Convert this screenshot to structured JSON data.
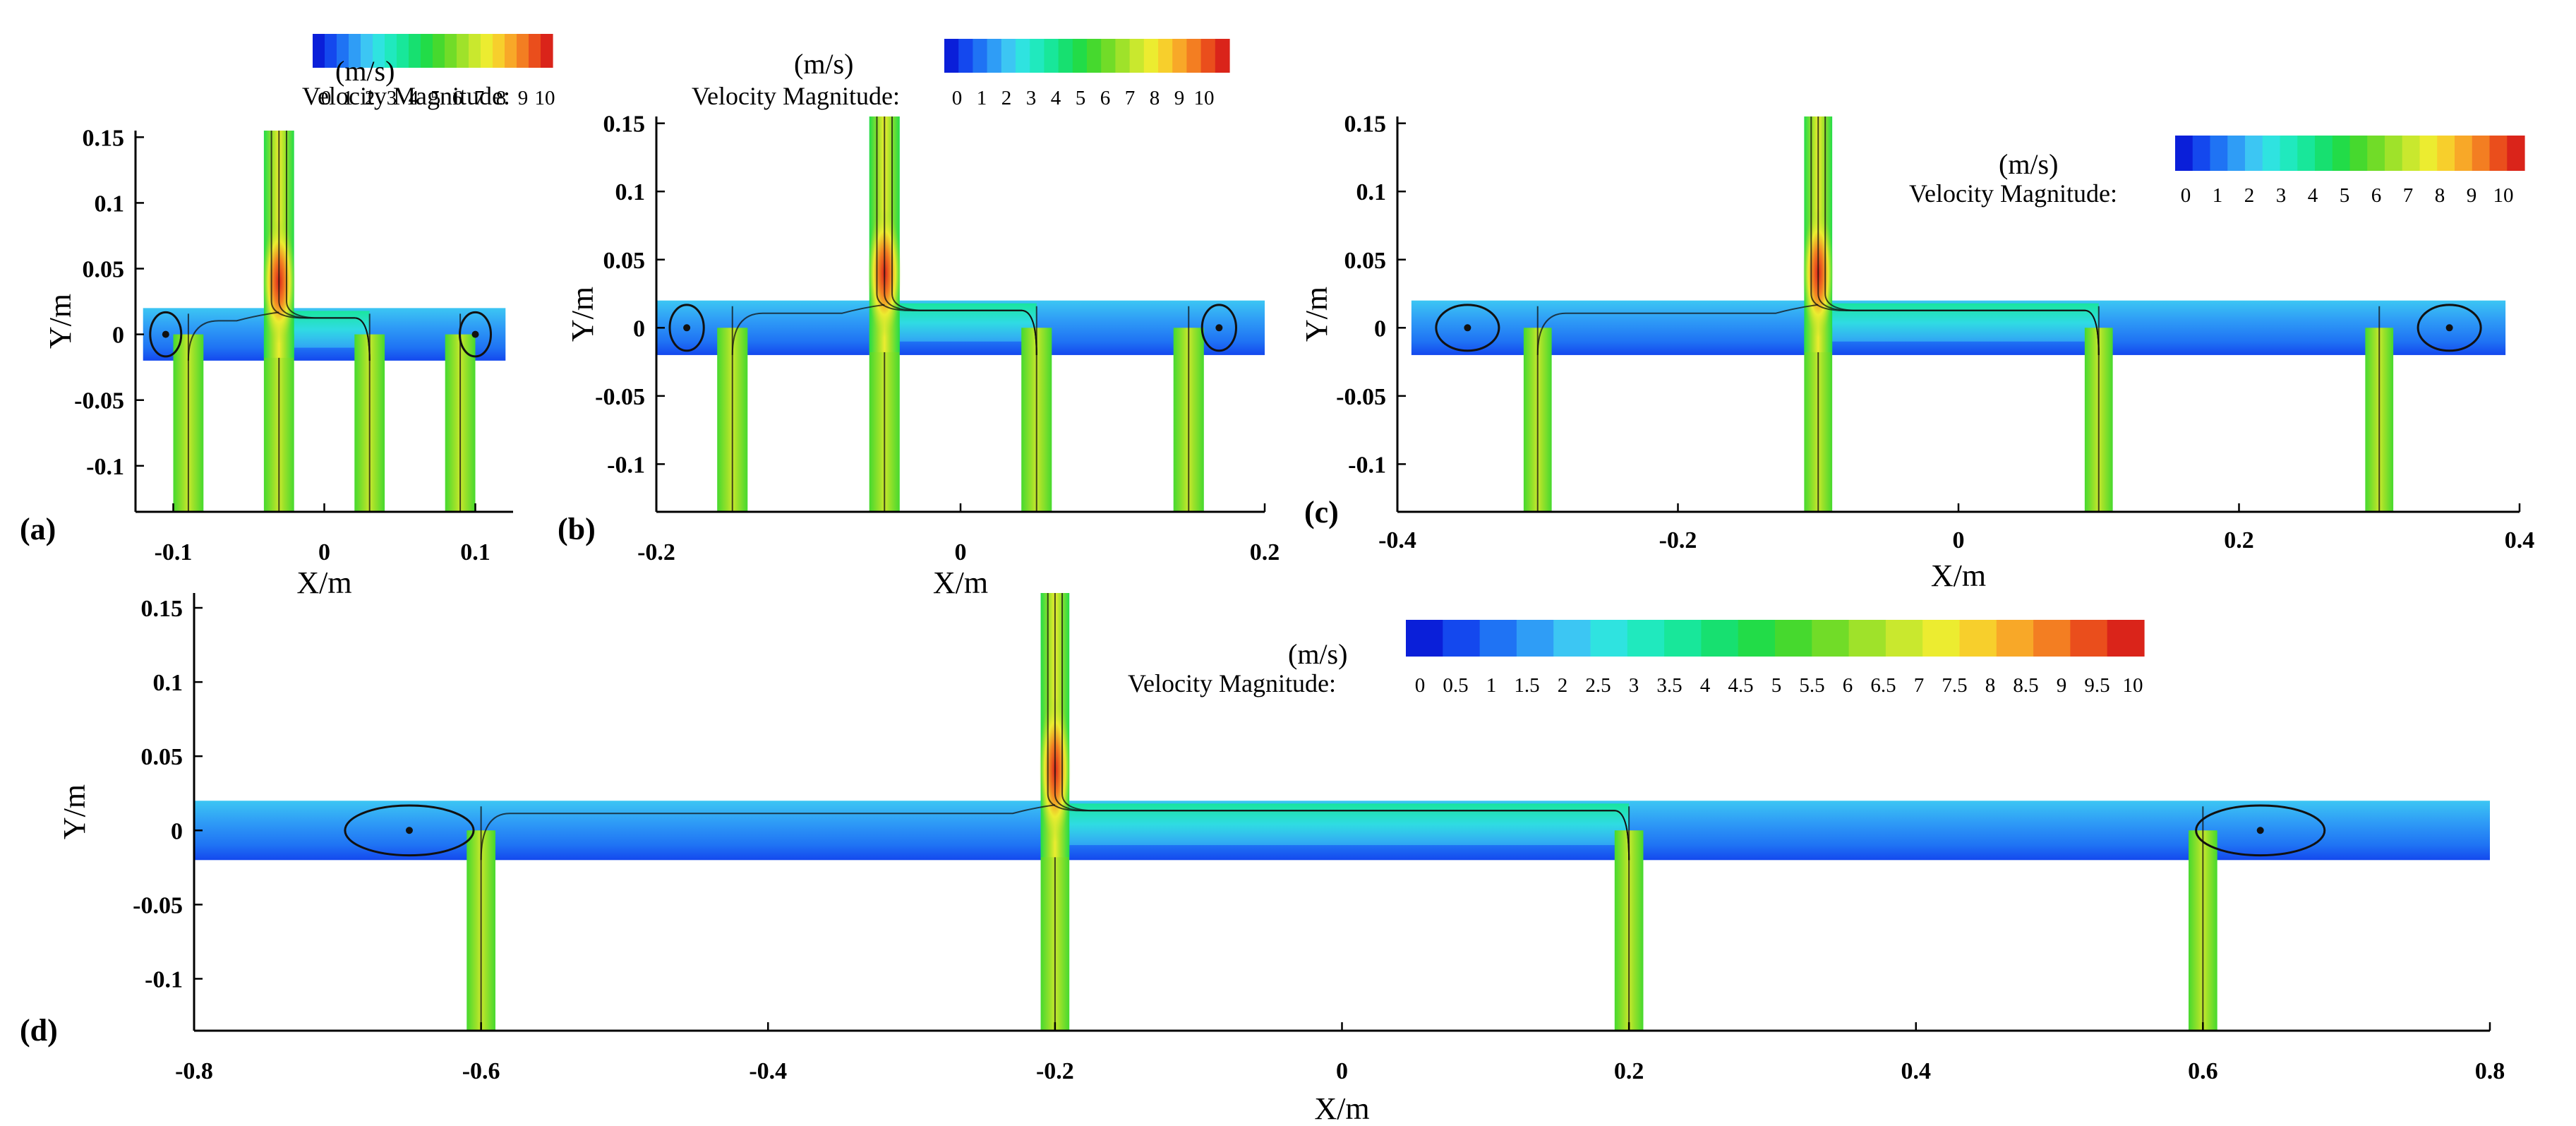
{
  "colorbar_colors": [
    "#0a1fd9",
    "#1448ee",
    "#1f73f4",
    "#2f9df6",
    "#3cc6f3",
    "#2fe3e0",
    "#20e9be",
    "#18e79a",
    "#17e070",
    "#22dc48",
    "#46d92e",
    "#71dc28",
    "#9fe22a",
    "#c9e82e",
    "#ecec30",
    "#f7cf2c",
    "#f8a828",
    "#f37e22",
    "#ea4e1c",
    "#da241a"
  ],
  "chart_data": [
    {
      "id": "a",
      "type": "heatmap",
      "panel_tag": "(a)",
      "xlabel": "X/m",
      "ylabel": "Y/m",
      "xlim": [
        -0.125,
        0.125
      ],
      "ylim": [
        -0.135,
        0.155
      ],
      "xticks": [
        -0.1,
        0,
        0.1
      ],
      "xtick_labels": [
        "-0.1",
        "0",
        "0.1"
      ],
      "yticks": [
        0.15,
        0.1,
        0.05,
        0,
        -0.05,
        -0.1
      ],
      "ytick_labels": [
        "0.15",
        "0.1",
        "0.05",
        "0",
        "-0.05",
        "-0.1"
      ],
      "colorbar": {
        "unit_label": "(m/s)",
        "label": "Velocity Magnitude:",
        "ticks": [
          "0",
          "1",
          "2",
          "3",
          "4",
          "5",
          "6",
          "7",
          "8",
          "9",
          "10"
        ]
      },
      "inlet_x": -0.03,
      "inlet_width": 0.02,
      "inlet_top": 0.155,
      "outlet_x": [
        -0.09,
        -0.03,
        0.03,
        0.09
      ],
      "outlet_width": 0.02,
      "header_x": [
        -0.12,
        0.12
      ],
      "header_y": [
        -0.02,
        0.02
      ],
      "vortices_x": [
        -0.105,
        0.1
      ]
    },
    {
      "id": "b",
      "type": "heatmap",
      "panel_tag": "(b)",
      "xlabel": "X/m",
      "ylabel": "Y/m",
      "xlim": [
        -0.2,
        0.2
      ],
      "ylim": [
        -0.135,
        0.155
      ],
      "xticks": [
        -0.2,
        0,
        0.2
      ],
      "xtick_labels": [
        "-0.2",
        "0",
        "0.2"
      ],
      "yticks": [
        0.15,
        0.1,
        0.05,
        0,
        -0.05,
        -0.1
      ],
      "ytick_labels": [
        "0.15",
        "0.1",
        "0.05",
        "0",
        "-0.05",
        "-0.1"
      ],
      "colorbar": {
        "unit_label": "(m/s)",
        "label": "Velocity Magnitude:",
        "ticks": [
          "0",
          "1",
          "2",
          "3",
          "4",
          "5",
          "6",
          "7",
          "8",
          "9",
          "10"
        ]
      },
      "inlet_x": -0.05,
      "inlet_width": 0.02,
      "inlet_top": 0.155,
      "outlet_x": [
        -0.15,
        -0.05,
        0.05,
        0.15
      ],
      "outlet_width": 0.02,
      "header_x": [
        -0.2,
        0.2
      ],
      "header_y": [
        -0.02,
        0.02
      ],
      "vortices_x": [
        -0.18,
        0.17
      ]
    },
    {
      "id": "c",
      "type": "heatmap",
      "panel_tag": "(c)",
      "xlabel": "X/m",
      "ylabel": "Y/m",
      "xlim": [
        -0.4,
        0.4
      ],
      "ylim": [
        -0.135,
        0.155
      ],
      "xticks": [
        -0.4,
        -0.2,
        0,
        0.2,
        0.4
      ],
      "xtick_labels": [
        "-0.4",
        "-0.2",
        "0",
        "0.2",
        "0.4"
      ],
      "yticks": [
        0.15,
        0.1,
        0.05,
        0,
        -0.05,
        -0.1
      ],
      "ytick_labels": [
        "0.15",
        "0.1",
        "0.05",
        "0",
        "-0.05",
        "-0.1"
      ],
      "colorbar": {
        "unit_label": "(m/s)",
        "label": "Velocity Magnitude:",
        "ticks": [
          "0",
          "1",
          "2",
          "3",
          "4",
          "5",
          "6",
          "7",
          "8",
          "9",
          "10"
        ]
      },
      "inlet_x": -0.1,
      "inlet_width": 0.02,
      "inlet_top": 0.155,
      "outlet_x": [
        -0.3,
        -0.1,
        0.1,
        0.3
      ],
      "outlet_width": 0.02,
      "header_x": [
        -0.39,
        0.39
      ],
      "header_y": [
        -0.02,
        0.02
      ],
      "vortices_x": [
        -0.35,
        0.35
      ]
    },
    {
      "id": "d",
      "type": "heatmap",
      "panel_tag": "(d)",
      "xlabel": "X/m",
      "ylabel": "Y/m",
      "xlim": [
        -0.8,
        0.8
      ],
      "ylim": [
        -0.135,
        0.16
      ],
      "xticks": [
        -0.8,
        -0.6,
        -0.4,
        -0.2,
        0,
        0.2,
        0.4,
        0.6,
        0.8
      ],
      "xtick_labels": [
        "-0.8",
        "-0.6",
        "-0.4",
        "-0.2",
        "0",
        "0.2",
        "0.4",
        "0.6",
        "0.8"
      ],
      "yticks": [
        0.15,
        0.1,
        0.05,
        0,
        -0.05,
        -0.1
      ],
      "ytick_labels": [
        "0.15",
        "0.1",
        "0.05",
        "0",
        "-0.05",
        "-0.1"
      ],
      "colorbar": {
        "unit_label": "(m/s)",
        "label": "Velocity Magnitude:",
        "ticks": [
          "0",
          "0.5",
          "1",
          "1.5",
          "2",
          "2.5",
          "3",
          "3.5",
          "4",
          "4.5",
          "5",
          "5.5",
          "6",
          "6.5",
          "7",
          "7.5",
          "8",
          "8.5",
          "9",
          "9.5",
          "10"
        ]
      },
      "inlet_x": -0.2,
      "inlet_width": 0.02,
      "inlet_top": 0.16,
      "outlet_x": [
        -0.6,
        -0.2,
        0.2,
        0.6
      ],
      "outlet_width": 0.02,
      "header_x": [
        -0.8,
        0.8
      ],
      "header_y": [
        -0.02,
        0.02
      ],
      "vortices_x": [
        -0.65,
        0.64
      ]
    }
  ]
}
